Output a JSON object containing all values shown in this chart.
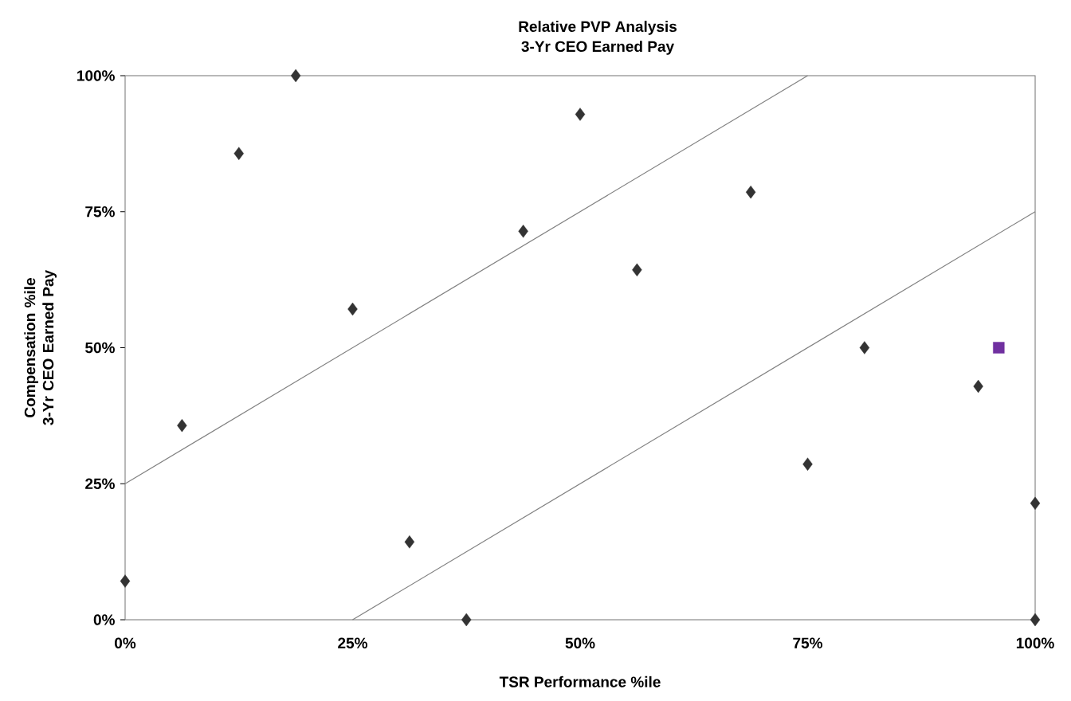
{
  "chart_data": {
    "type": "scatter",
    "title": "Relative PVP Analysis",
    "subtitle": "3-Yr CEO Earned Pay",
    "xlabel": "TSR Performance %ile",
    "ylabel": "Compensation %ile 3-Yr CEO Earned Pay",
    "xlim": [
      0,
      100
    ],
    "ylim": [
      0,
      100
    ],
    "xticks": [
      {
        "value": 0,
        "label": "0%"
      },
      {
        "value": 25,
        "label": "25%"
      },
      {
        "value": 50,
        "label": "50%"
      },
      {
        "value": 75,
        "label": "75%"
      },
      {
        "value": 100,
        "label": "100%"
      }
    ],
    "yticks": [
      {
        "value": 0,
        "label": "0%"
      },
      {
        "value": 25,
        "label": "25%"
      },
      {
        "value": 50,
        "label": "50%"
      },
      {
        "value": 75,
        "label": "75%"
      },
      {
        "value": 100,
        "label": "100%"
      }
    ],
    "grid": false,
    "series": [
      {
        "marker": "diamond",
        "color": "#333333",
        "x": [
          0,
          6.25,
          12.5,
          18.75,
          25,
          31.25,
          37.5,
          43.75,
          50,
          56.25,
          68.75,
          75,
          81.25,
          93.75,
          100,
          100
        ],
        "values": [
          7.1,
          35.7,
          85.7,
          100,
          57.1,
          14.3,
          0,
          71.4,
          92.9,
          64.3,
          78.6,
          28.6,
          50,
          42.9,
          21.4,
          0
        ]
      },
      {
        "marker": "square",
        "color": "#7030a0",
        "x": [
          96
        ],
        "values": [
          50
        ]
      },
      {
        "type": "line",
        "marker": "none",
        "color": "#808080",
        "x": [
          0,
          75
        ],
        "values": [
          25,
          100
        ]
      },
      {
        "type": "line",
        "marker": "none",
        "color": "#808080",
        "x": [
          25,
          100
        ],
        "values": [
          0,
          75
        ]
      }
    ]
  }
}
